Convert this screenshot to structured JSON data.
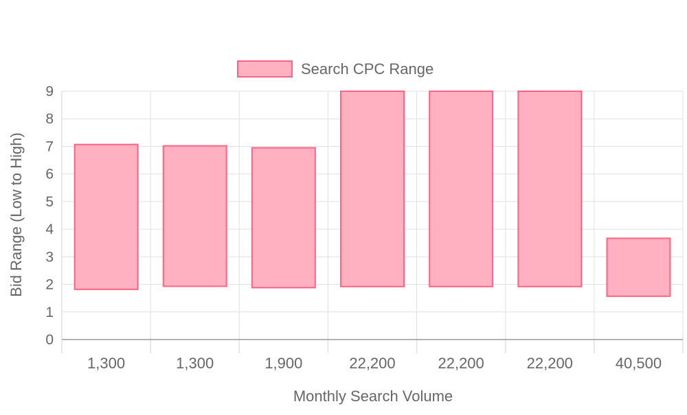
{
  "chart_data": {
    "type": "bar",
    "style": "floating-range",
    "title": "",
    "xlabel": "Monthly Search Volume",
    "ylabel": "Bid Range (Low to High)",
    "ylim": [
      0,
      9
    ],
    "yticks": [
      "0",
      "1",
      "2",
      "3",
      "4",
      "5",
      "6",
      "7",
      "8",
      "9"
    ],
    "categories": [
      "1,300",
      "1,300",
      "1,900",
      "22,200",
      "22,200",
      "22,200",
      "40,500"
    ],
    "series": [
      {
        "name": "Search CPC Range",
        "ranges": [
          [
            1.82,
            7.07
          ],
          [
            1.93,
            7.02
          ],
          [
            1.88,
            6.95
          ],
          [
            1.92,
            9.0
          ],
          [
            1.92,
            9.0
          ],
          [
            1.92,
            9.0
          ],
          [
            1.57,
            3.67
          ]
        ],
        "fill": "#ffb1c1",
        "stroke": "#ff6384"
      }
    ],
    "legend": {
      "position": "top",
      "label": "Search CPC Range"
    },
    "grid": true,
    "colors": {
      "grid": "#e0e0e0",
      "axis": "#999999",
      "text": "#666666"
    }
  }
}
